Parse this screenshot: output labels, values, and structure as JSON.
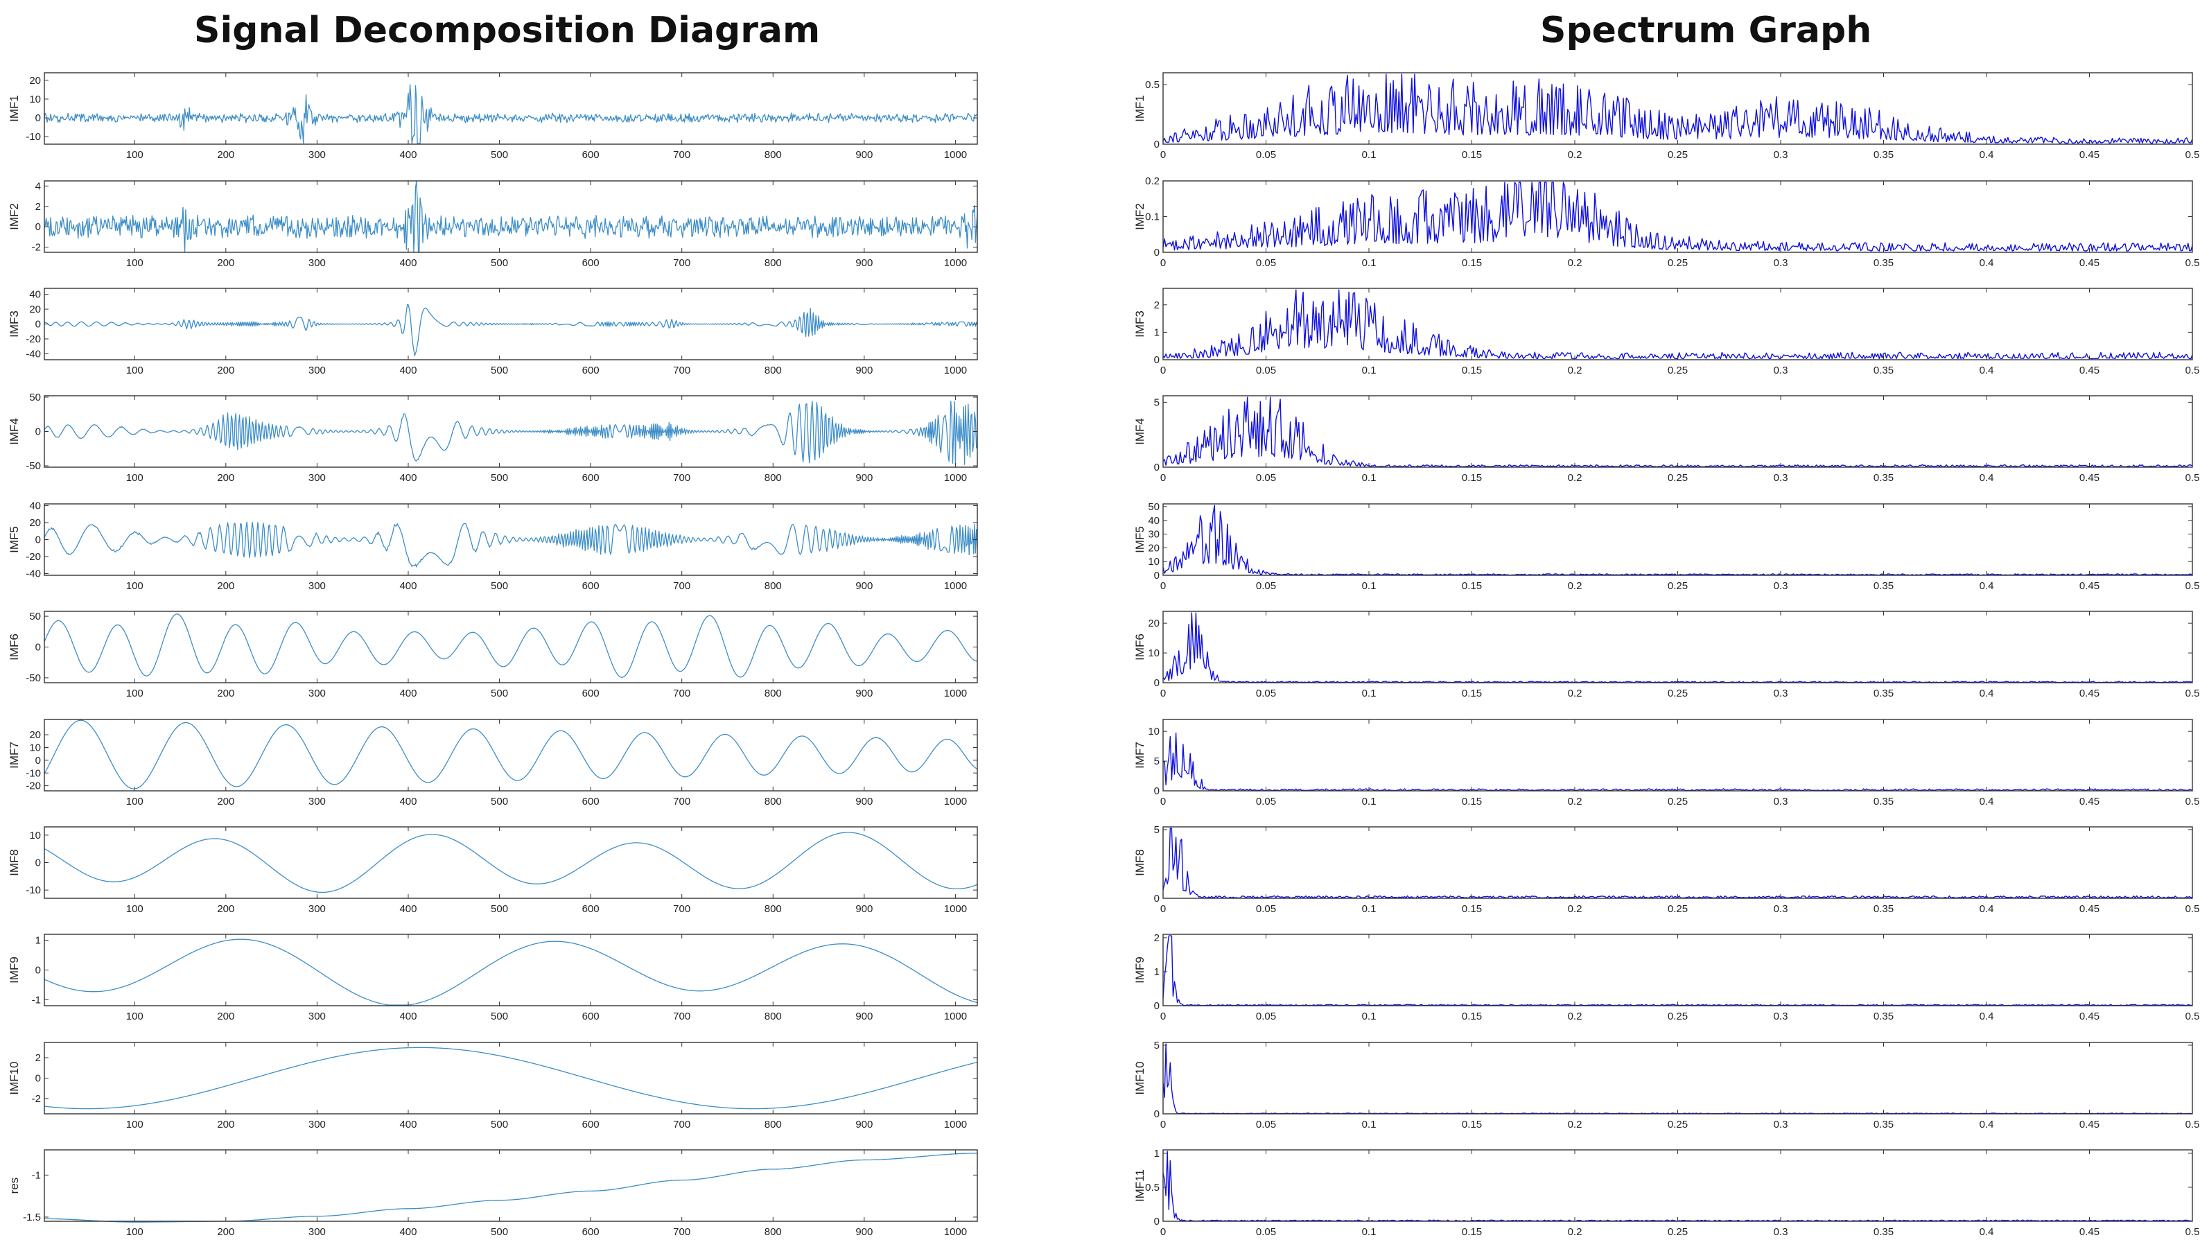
{
  "titles": {
    "left": "Signal Decomposition Diagram",
    "right": "Spectrum Graph"
  },
  "colors": {
    "left_series": "#3c8dc8",
    "right_series": "#1010e0",
    "axes": "#333333"
  },
  "chart_data": [
    {
      "type": "line",
      "title": "Signal Decomposition Diagram",
      "xlim": [
        1,
        1024
      ],
      "x_ticks": [
        100,
        200,
        300,
        400,
        500,
        600,
        700,
        800,
        900,
        1000
      ],
      "x_tick_labels": [
        "100",
        "200",
        "300",
        "400",
        "500",
        "600",
        "700",
        "800",
        "900",
        "1000"
      ],
      "grid": false,
      "panels": [
        {
          "ylabel": "IMF1",
          "ylim": [
            -14,
            24
          ],
          "yticks": [
            -10,
            0,
            10,
            20
          ],
          "ytick_labels": [
            "-10",
            "0",
            "10",
            "20"
          ],
          "shape": {
            "kind": "noise",
            "base": 2,
            "bursts": [
              [
                155,
                6,
                4
              ],
              [
                285,
                10,
                8
              ],
              [
                408,
                22,
                8
              ]
            ]
          }
        },
        {
          "ylabel": "IMF2",
          "ylim": [
            -2.5,
            4.5
          ],
          "yticks": [
            -2,
            0,
            2,
            4
          ],
          "ytick_labels": [
            "-2",
            "0",
            "2",
            "4"
          ],
          "shape": {
            "kind": "noise",
            "base": 0.9,
            "bursts": [
              [
                155,
                1.6,
                6
              ],
              [
                408,
                3.5,
                6
              ],
              [
                1020,
                1.5,
                6
              ]
            ]
          }
        },
        {
          "ylabel": "IMF3",
          "ylim": [
            -48,
            48
          ],
          "yticks": [
            -40,
            -20,
            0,
            20,
            40
          ],
          "ytick_labels": [
            "-40",
            "-20",
            "0",
            "20",
            "40"
          ],
          "shape": {
            "kind": "bursty",
            "period": 12,
            "base": 3,
            "bursts": [
              [
                155,
                30,
                10
              ],
              [
                408,
                45,
                10
              ],
              [
                285,
                15,
                8
              ],
              [
                530,
                8,
                6
              ],
              [
                690,
                14,
                8
              ],
              [
                840,
                20,
                8
              ]
            ]
          }
        },
        {
          "ylabel": "IMF4",
          "ylim": [
            -52,
            52
          ],
          "yticks": [
            -50,
            0,
            50
          ],
          "ytick_labels": [
            "-50",
            "0",
            "50"
          ],
          "shape": {
            "kind": "bursty",
            "period": 22,
            "base": 10,
            "bursts": [
              [
                415,
                40,
                20
              ],
              [
                690,
                20,
                15
              ],
              [
                845,
                42,
                20
              ],
              [
                1000,
                45,
                18
              ],
              [
                205,
                25,
                18
              ]
            ]
          }
        },
        {
          "ylabel": "IMF5",
          "ylim": [
            -42,
            42
          ],
          "yticks": [
            -40,
            -20,
            0,
            20,
            40
          ],
          "ytick_labels": [
            "-40",
            "-20",
            "0",
            "20",
            "40"
          ],
          "shape": {
            "kind": "bursty",
            "period": 38,
            "base": 18,
            "bursts": [
              [
                415,
                20,
                30
              ],
              [
                170,
                10,
                40
              ]
            ]
          }
        },
        {
          "ylabel": "IMF6",
          "ylim": [
            -58,
            58
          ],
          "yticks": [
            -50,
            0,
            50
          ],
          "ytick_labels": [
            "-50",
            "0",
            "50"
          ],
          "shape": {
            "kind": "wave",
            "components": [
              [
                46,
                65,
                0.0
              ],
              [
                8,
                140,
                1.0
              ]
            ]
          }
        },
        {
          "ylabel": "IMF7",
          "ylim": [
            -24,
            32
          ],
          "yticks": [
            -20,
            -10,
            0,
            10,
            20
          ],
          "ytick_labels": [
            "-20",
            "-10",
            "0",
            "10",
            "20"
          ],
          "shape": {
            "kind": "chirp",
            "amp_start": 28,
            "amp_end": 12,
            "period_start": 120,
            "period_end": 95
          }
        },
        {
          "ylabel": "IMF8",
          "ylim": [
            -13,
            13
          ],
          "yticks": [
            -10,
            0,
            10
          ],
          "ytick_labels": [
            "-10",
            "0",
            "10"
          ],
          "shape": {
            "kind": "wave",
            "components": [
              [
                9,
                230,
                2.6
              ],
              [
                2,
                400,
                0.3
              ]
            ]
          }
        },
        {
          "ylabel": "IMF9",
          "ylim": [
            -1.2,
            1.2
          ],
          "yticks": [
            -1,
            0,
            1
          ],
          "ytick_labels": [
            "-1",
            "0",
            "1"
          ],
          "shape": {
            "kind": "wave",
            "components": [
              [
                0.95,
                330,
                3.6
              ],
              [
                0.25,
                600,
                0.5
              ]
            ]
          }
        },
        {
          "ylabel": "IMF10",
          "ylim": [
            -3.5,
            3.5
          ],
          "yticks": [
            -2,
            0,
            2
          ],
          "ytick_labels": [
            "-2",
            "0",
            "2"
          ],
          "shape": {
            "kind": "wave",
            "components": [
              [
                3.0,
                730,
                4.3
              ]
            ]
          }
        },
        {
          "ylabel": "res",
          "ylim": [
            -1.55,
            -0.7
          ],
          "yticks": [
            -1.5,
            -1
          ],
          "ytick_labels": [
            "-1.5",
            "-1"
          ],
          "shape": {
            "kind": "trend",
            "points": [
              [
                1,
                -1.52
              ],
              [
                100,
                -1.56
              ],
              [
                200,
                -1.55
              ],
              [
                300,
                -1.49
              ],
              [
                400,
                -1.4
              ],
              [
                500,
                -1.3
              ],
              [
                600,
                -1.19
              ],
              [
                700,
                -1.06
              ],
              [
                800,
                -0.93
              ],
              [
                900,
                -0.82
              ],
              [
                1024,
                -0.74
              ]
            ]
          }
        }
      ]
    },
    {
      "type": "line",
      "title": "Spectrum Graph",
      "xlim": [
        0,
        0.5
      ],
      "x_ticks": [
        0,
        0.05,
        0.1,
        0.15,
        0.2,
        0.25,
        0.3,
        0.35,
        0.4,
        0.45,
        0.5
      ],
      "x_tick_labels": [
        "0",
        "0.05",
        "0.1",
        "0.15",
        "0.2",
        "0.25",
        "0.3",
        "0.35",
        "0.4",
        "0.45",
        "0.5"
      ],
      "grid": false,
      "panels": [
        {
          "ylabel": "IMF1",
          "ylim": [
            0,
            0.6
          ],
          "yticks": [
            0,
            0.5
          ],
          "ytick_labels": [
            "0",
            "0.5"
          ],
          "shape": {
            "lobes": [
              [
                0.11,
                0.045,
                0.32
              ],
              [
                0.2,
                0.03,
                0.22
              ],
              [
                0.31,
                0.04,
                0.2
              ],
              [
                0.05,
                0.03,
                0.05
              ]
            ],
            "floor": 0.03
          }
        },
        {
          "ylabel": "IMF2",
          "ylim": [
            0,
            0.2
          ],
          "yticks": [
            0,
            0.1,
            0.2
          ],
          "ytick_labels": [
            "0",
            "0.1",
            "0.2"
          ],
          "shape": {
            "lobes": [
              [
                0.13,
                0.06,
                0.085
              ],
              [
                0.19,
                0.02,
                0.08
              ]
            ],
            "floor": 0.015
          }
        },
        {
          "ylabel": "IMF3",
          "ylim": [
            0,
            2.6
          ],
          "yticks": [
            0,
            1,
            2
          ],
          "ytick_labels": [
            "0",
            "1",
            "2"
          ],
          "shape": {
            "lobes": [
              [
                0.075,
                0.025,
                1.5
              ],
              [
                0.12,
                0.02,
                0.35
              ]
            ],
            "floor": 0.15
          }
        },
        {
          "ylabel": "IMF4",
          "ylim": [
            0,
            5.5
          ],
          "yticks": [
            0,
            5
          ],
          "ytick_labels": [
            "0",
            "5"
          ],
          "shape": {
            "lobes": [
              [
                0.05,
                0.018,
                3.0
              ],
              [
                0.02,
                0.015,
                0.8
              ]
            ],
            "floor": 0.1
          }
        },
        {
          "ylabel": "IMF5",
          "ylim": [
            0,
            52
          ],
          "yticks": [
            0,
            10,
            20,
            30,
            40,
            50
          ],
          "ytick_labels": [
            "0",
            "10",
            "20",
            "30",
            "40",
            "50"
          ],
          "shape": {
            "lobes": [
              [
                0.022,
                0.011,
                30
              ]
            ],
            "floor": 0.6
          }
        },
        {
          "ylabel": "IMF6",
          "ylim": [
            0,
            24
          ],
          "yticks": [
            0,
            10,
            20
          ],
          "ytick_labels": [
            "0",
            "10",
            "20"
          ],
          "shape": {
            "lobes": [
              [
                0.014,
                0.006,
                14
              ]
            ],
            "floor": 0.25
          }
        },
        {
          "ylabel": "IMF7",
          "ylim": [
            0,
            12
          ],
          "yticks": [
            0,
            5,
            10
          ],
          "ytick_labels": [
            "0",
            "5",
            "10"
          ],
          "shape": {
            "lobes": [
              [
                0.008,
                0.005,
                9
              ]
            ],
            "floor": 0.2
          }
        },
        {
          "ylabel": "IMF8",
          "ylim": [
            0,
            5.2
          ],
          "yticks": [
            0,
            5
          ],
          "ytick_labels": [
            "0",
            "5"
          ],
          "shape": {
            "lobes": [
              [
                0.005,
                0.004,
                4.2
              ]
            ],
            "floor": 0.1
          }
        },
        {
          "ylabel": "IMF9",
          "ylim": [
            0,
            2.1
          ],
          "yticks": [
            0,
            1,
            2
          ],
          "ytick_labels": [
            "0",
            "1",
            "2"
          ],
          "shape": {
            "lobes": [
              [
                0.003,
                0.002,
                1.6
              ]
            ],
            "floor": 0.02
          }
        },
        {
          "ylabel": "IMF10",
          "ylim": [
            0,
            5.2
          ],
          "yticks": [
            0,
            5
          ],
          "ytick_labels": [
            "0",
            "5"
          ],
          "shape": {
            "lobes": [
              [
                0.001,
                0.002,
                4.6
              ]
            ],
            "floor": 0.03
          }
        },
        {
          "ylabel": "IMF11",
          "ylim": [
            0,
            1.05
          ],
          "yticks": [
            0,
            0.5,
            1
          ],
          "ytick_labels": [
            "0",
            "0.5",
            "1"
          ],
          "shape": {
            "lobes": [
              [
                0.0,
                0.003,
                0.95
              ]
            ],
            "floor": 0.01
          }
        }
      ]
    }
  ]
}
